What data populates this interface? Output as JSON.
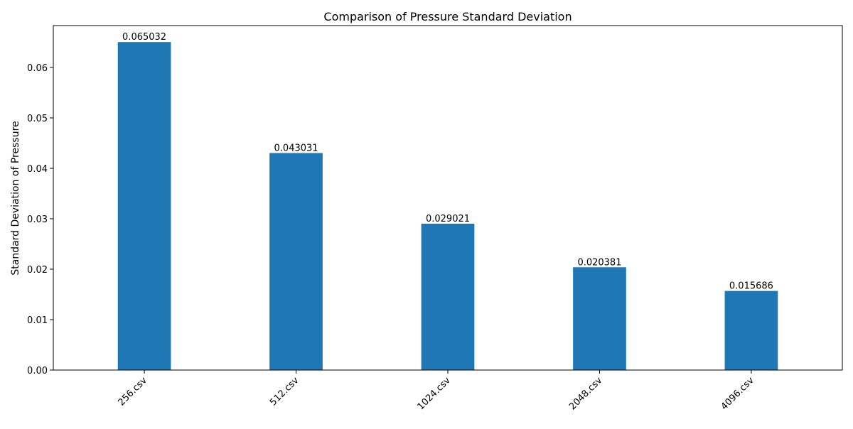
{
  "chart_data": {
    "type": "bar",
    "title": "Comparison of Pressure Standard Deviation",
    "xlabel": "",
    "ylabel": "Standard Deviation of Pressure",
    "categories": [
      "256.csv",
      "512.csv",
      "1024.csv",
      "2048.csv",
      "4096.csv"
    ],
    "values": [
      0.065032,
      0.043031,
      0.029021,
      0.020381,
      0.015686
    ],
    "value_labels": [
      "0.065032",
      "0.043031",
      "0.029021",
      "0.020381",
      "0.015686"
    ],
    "ylim": [
      0,
      0.0683
    ],
    "yticks": [
      0.0,
      0.01,
      0.02,
      0.03,
      0.04,
      0.05,
      0.06
    ],
    "ytick_labels": [
      "0.00",
      "0.01",
      "0.02",
      "0.03",
      "0.04",
      "0.05",
      "0.06"
    ],
    "bar_color": "#1f77b4",
    "grid": false,
    "legend": "none"
  }
}
